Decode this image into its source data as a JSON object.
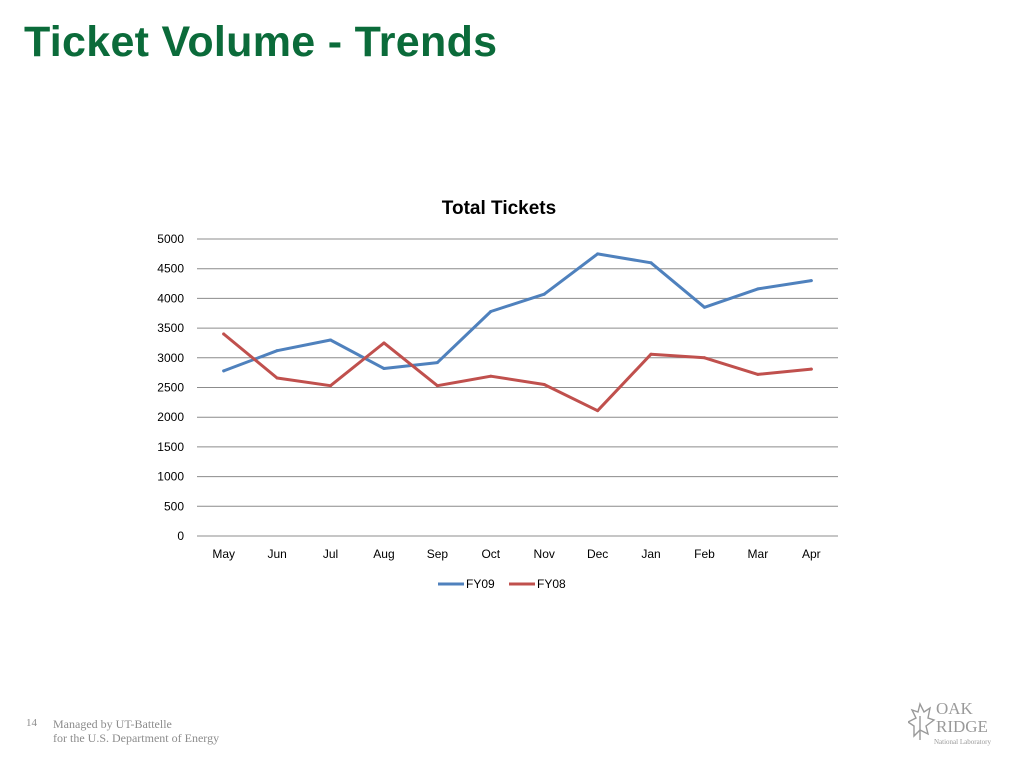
{
  "slide": {
    "title": "Ticket Volume - Trends",
    "page_number": "14",
    "footer_line1": "Managed by UT-Battelle",
    "footer_line2": "for the U.S. Department of Energy",
    "logo": {
      "line1": "OAK",
      "line2": "RIDGE",
      "line3": "National Laboratory",
      "icon": "leaf-logo-icon"
    }
  },
  "colors": {
    "title": "#0b6b3a",
    "fy09": "#4f81bd",
    "fy08": "#c0504d",
    "grid": "#8c8c8c"
  },
  "chart_data": {
    "type": "line",
    "title": "Total Tickets",
    "xlabel": "",
    "ylabel": "",
    "ylim": [
      0,
      5000
    ],
    "yticks": [
      0,
      500,
      1000,
      1500,
      2000,
      2500,
      3000,
      3500,
      4000,
      4500,
      5000
    ],
    "grid": true,
    "legend_position": "bottom",
    "categories": [
      "May",
      "Jun",
      "Jul",
      "Aug",
      "Sep",
      "Oct",
      "Nov",
      "Dec",
      "Jan",
      "Feb",
      "Mar",
      "Apr"
    ],
    "series": [
      {
        "name": "FY09",
        "color": "#4f81bd",
        "values": [
          2780,
          3120,
          3300,
          2820,
          2920,
          3780,
          4070,
          4750,
          4600,
          3850,
          4160,
          4300
        ]
      },
      {
        "name": "FY08",
        "color": "#c0504d",
        "values": [
          3400,
          2660,
          2530,
          3250,
          2530,
          2690,
          2550,
          2110,
          3060,
          3000,
          2720,
          2810
        ]
      }
    ]
  }
}
